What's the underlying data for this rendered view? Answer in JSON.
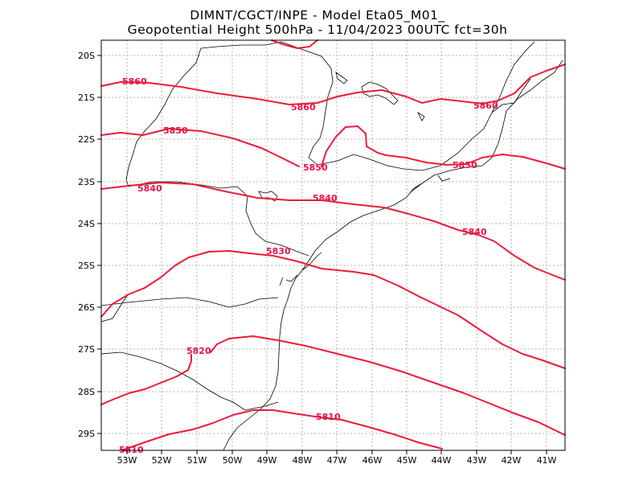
{
  "title": {
    "line1": "DIMNT/CGCT/INPE  -   Model Eta05_M01_",
    "line2": "Geopotential Height 500hPa  -   11/04/2023 00UTC fct=30h"
  },
  "axes": {
    "x_ticks": [
      "53W",
      "52W",
      "51W",
      "50W",
      "49W",
      "48W",
      "47W",
      "46W",
      "45W",
      "44W",
      "43W",
      "42W",
      "41W"
    ],
    "y_ticks": [
      "20S",
      "21S",
      "22S",
      "23S",
      "24S",
      "25S",
      "26S",
      "27S",
      "28S",
      "29S"
    ]
  },
  "contour_labels": [
    "5860",
    "5860",
    "5860",
    "5850",
    "5850",
    "5850",
    "5840",
    "5840",
    "5840",
    "5830",
    "5820",
    "5810",
    "5810"
  ],
  "colors": {
    "contour": "#ee1a3c",
    "label": "#e8114a",
    "map_lines": "#000000",
    "grid": "#9a9a9a"
  }
}
